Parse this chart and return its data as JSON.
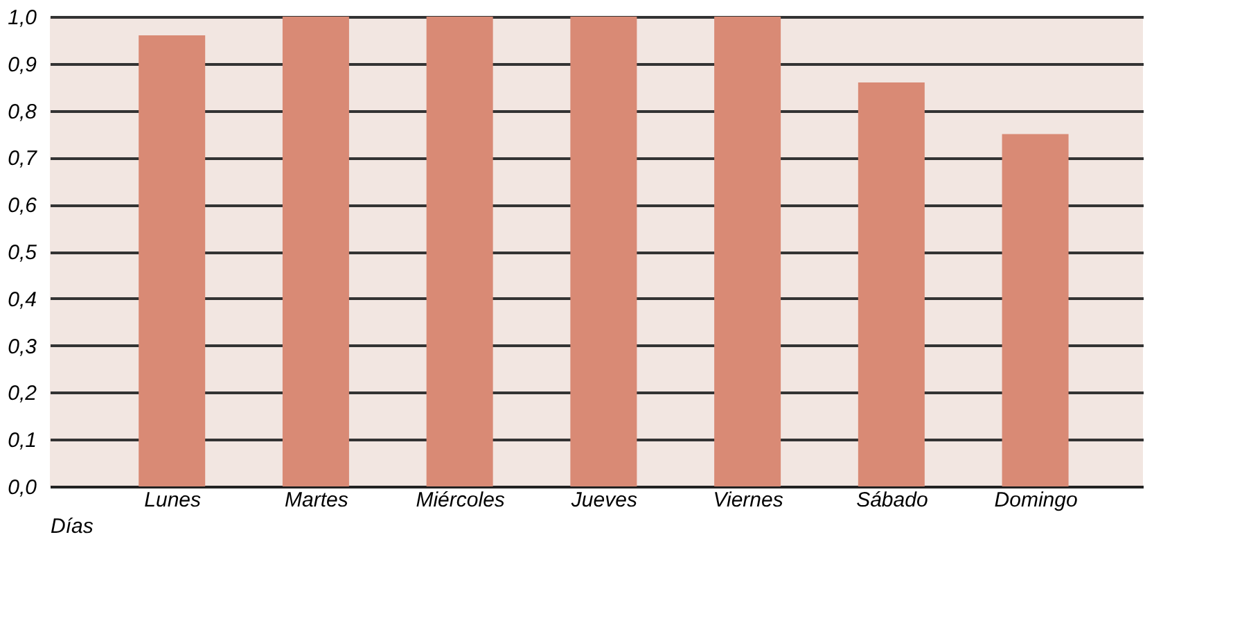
{
  "chart_data": {
    "type": "bar",
    "xlabel": "Días",
    "categories": [
      "Lunes",
      "Martes",
      "Miércoles",
      "Jueves",
      "Viernes",
      "Sábado",
      "Domingo"
    ],
    "values": [
      0.96,
      1.0,
      1.0,
      1.0,
      1.0,
      0.86,
      0.75
    ],
    "color": "#d98a75",
    "ylim": [
      0,
      1.0
    ],
    "yticks": [
      {
        "value": 0,
        "label": "0,0"
      },
      {
        "value": 0.1,
        "label": "0,1"
      },
      {
        "value": 0.2,
        "label": "0,2"
      },
      {
        "value": 0.3,
        "label": "0,3"
      },
      {
        "value": 0.4,
        "label": "0,4"
      },
      {
        "value": 0.5,
        "label": "0,5"
      },
      {
        "value": 0.6,
        "label": "0,6"
      },
      {
        "value": 0.7,
        "label": "0,7"
      },
      {
        "value": 0.8,
        "label": "0,8"
      },
      {
        "value": 0.9,
        "label": "0,9"
      },
      {
        "value": 1.0,
        "label": "1,0"
      }
    ],
    "grid": "y"
  }
}
